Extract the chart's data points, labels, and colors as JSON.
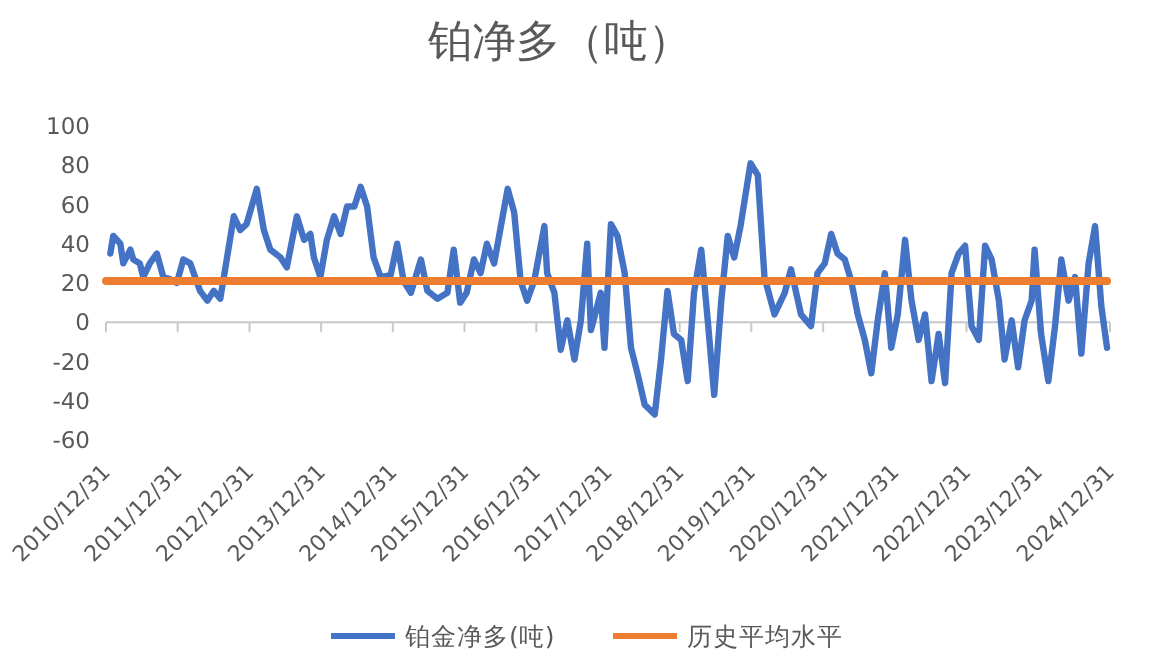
{
  "chart_data": {
    "type": "line",
    "title": "铂净多（吨）",
    "xlim": [
      "2010-12-31",
      "2024-12-31"
    ],
    "xticks": [
      {
        "value": "2010-12-31",
        "label": "2010/12/31"
      },
      {
        "value": "2011-12-31",
        "label": "2011/12/31"
      },
      {
        "value": "2012-12-31",
        "label": "2012/12/31"
      },
      {
        "value": "2013-12-31",
        "label": "2013/12/31"
      },
      {
        "value": "2014-12-31",
        "label": "2014/12/31"
      },
      {
        "value": "2015-12-31",
        "label": "2015/12/31"
      },
      {
        "value": "2016-12-31",
        "label": "2016/12/31"
      },
      {
        "value": "2017-12-31",
        "label": "2017/12/31"
      },
      {
        "value": "2018-12-31",
        "label": "2018/12/31"
      },
      {
        "value": "2019-12-31",
        "label": "2019/12/31"
      },
      {
        "value": "2020-12-31",
        "label": "2020/12/31"
      },
      {
        "value": "2021-12-31",
        "label": "2021/12/31"
      },
      {
        "value": "2022-12-31",
        "label": "2022/12/31"
      },
      {
        "value": "2023-12-31",
        "label": "2023/12/31"
      },
      {
        "value": "2024-12-31",
        "label": "2024/12/31"
      }
    ],
    "ylim": [
      -60,
      100
    ],
    "yticks": [
      -60,
      -40,
      -20,
      0,
      20,
      40,
      60,
      80,
      100
    ],
    "grid": false,
    "ref_lines": [
      {
        "axis": "y",
        "value": 0,
        "color": "#c8c8c8",
        "line_style": "solid"
      }
    ],
    "legend": "bottom",
    "marker": "none",
    "line_style": "solid",
    "series": [
      {
        "name": "铂金净多(吨)",
        "color": "#4472c4",
        "x": [
          "2011-01-22",
          "2011-02-06",
          "2011-03-14",
          "2011-03-29",
          "2011-05-04",
          "2011-05-19",
          "2011-06-21",
          "2011-07-09",
          "2011-08-11",
          "2011-09-16",
          "2011-10-19",
          "2011-11-21",
          "2011-12-27",
          "2012-01-29",
          "2012-03-04",
          "2012-04-23",
          "2012-05-30",
          "2012-07-02",
          "2012-08-04",
          "2012-09-06",
          "2012-10-12",
          "2012-11-14",
          "2012-12-16",
          "2013-02-06",
          "2013-03-14",
          "2013-04-16",
          "2013-06-07",
          "2013-07-09",
          "2013-08-29",
          "2013-10-05",
          "2013-11-06",
          "2013-11-24",
          "2013-12-27",
          "2014-01-29",
          "2014-03-07",
          "2014-04-09",
          "2014-05-12",
          "2014-06-18",
          "2014-07-20",
          "2014-08-22",
          "2014-09-24",
          "2014-10-30",
          "2014-12-20",
          "2015-01-22",
          "2015-02-24",
          "2015-04-02",
          "2015-05-23",
          "2015-06-25",
          "2015-08-15",
          "2015-10-05",
          "2015-11-06",
          "2015-12-09",
          "2016-01-11",
          "2016-02-17",
          "2016-03-22",
          "2016-04-23",
          "2016-05-30",
          "2016-08-07",
          "2016-09-09",
          "2016-10-12",
          "2016-11-14",
          "2016-12-20",
          "2017-02-10",
          "2017-02-24",
          "2017-04-02",
          "2017-05-04",
          "2017-06-07",
          "2017-07-13",
          "2017-08-15",
          "2017-09-16",
          "2017-10-05",
          "2017-11-24",
          "2017-12-13",
          "2018-01-15",
          "2018-02-17",
          "2018-03-26",
          "2018-04-27",
          "2018-05-30",
          "2018-07-06",
          "2018-08-26",
          "2018-09-27",
          "2018-10-30",
          "2018-12-02",
          "2019-01-08",
          "2019-02-10",
          "2019-03-14",
          "2019-04-20",
          "2019-05-23",
          "2019-06-25",
          "2019-07-31",
          "2019-09-02",
          "2019-10-05",
          "2019-11-06",
          "2019-12-27",
          "2020-02-02",
          "2020-03-07",
          "2020-04-27",
          "2020-06-18",
          "2020-07-20",
          "2020-09-09",
          "2020-10-30",
          "2020-12-02",
          "2021-01-08",
          "2021-02-10",
          "2021-03-14",
          "2021-04-20",
          "2021-05-23",
          "2021-06-25",
          "2021-07-31",
          "2021-09-02",
          "2021-10-05",
          "2021-11-10",
          "2021-12-13",
          "2022-01-15",
          "2022-02-21",
          "2022-03-26",
          "2022-05-01",
          "2022-06-03",
          "2022-07-06",
          "2022-08-11",
          "2022-09-13",
          "2022-10-16",
          "2022-11-21",
          "2022-12-24",
          "2023-01-26",
          "2023-03-04",
          "2023-04-05",
          "2023-05-08",
          "2023-06-14",
          "2023-07-13",
          "2023-08-18",
          "2023-09-20",
          "2023-10-23",
          "2023-11-28",
          "2023-12-13",
          "2024-01-15",
          "2024-02-21",
          "2024-03-26",
          "2024-04-27",
          "2024-06-03",
          "2024-07-06",
          "2024-08-07",
          "2024-09-13",
          "2024-10-16",
          "2024-11-17",
          "2024-12-16"
        ],
        "values": [
          35,
          44,
          40,
          30,
          37,
          32,
          30,
          23,
          30,
          35,
          23,
          22,
          20,
          32,
          30,
          16,
          11,
          16,
          12,
          32,
          54,
          47,
          50,
          68,
          47,
          37,
          33,
          28,
          54,
          42,
          45,
          33,
          23,
          42,
          54,
          45,
          59,
          59,
          69,
          59,
          33,
          23,
          24,
          40,
          21,
          15,
          32,
          16,
          12,
          15,
          37,
          10,
          15,
          32,
          25,
          40,
          30,
          68,
          56,
          21,
          11,
          21,
          49,
          25,
          15,
          -14,
          1,
          -19,
          1,
          40,
          -4,
          15,
          -13,
          50,
          44,
          25,
          -13,
          -26,
          -42,
          -47,
          -19,
          16,
          -6,
          -9,
          -30,
          15,
          37,
          1,
          -37,
          11,
          44,
          33,
          49,
          81,
          75,
          23,
          4,
          15,
          27,
          4,
          -2,
          25,
          30,
          45,
          35,
          32,
          21,
          4,
          -9,
          -26,
          1,
          25,
          -13,
          4,
          42,
          11,
          -9,
          4,
          -30,
          -6,
          -31,
          25,
          35,
          39,
          -2,
          -9,
          39,
          32,
          11,
          -19,
          1,
          -23,
          1,
          11,
          37,
          -6,
          -30,
          -2,
          32,
          11,
          23,
          -16,
          30,
          49,
          8,
          -13
        ]
      },
      {
        "name": "历史平均水平",
        "color": "#ed7d31",
        "x": [
          "2010-12-31",
          "2024-12-16"
        ],
        "values": [
          21,
          21
        ]
      }
    ]
  }
}
